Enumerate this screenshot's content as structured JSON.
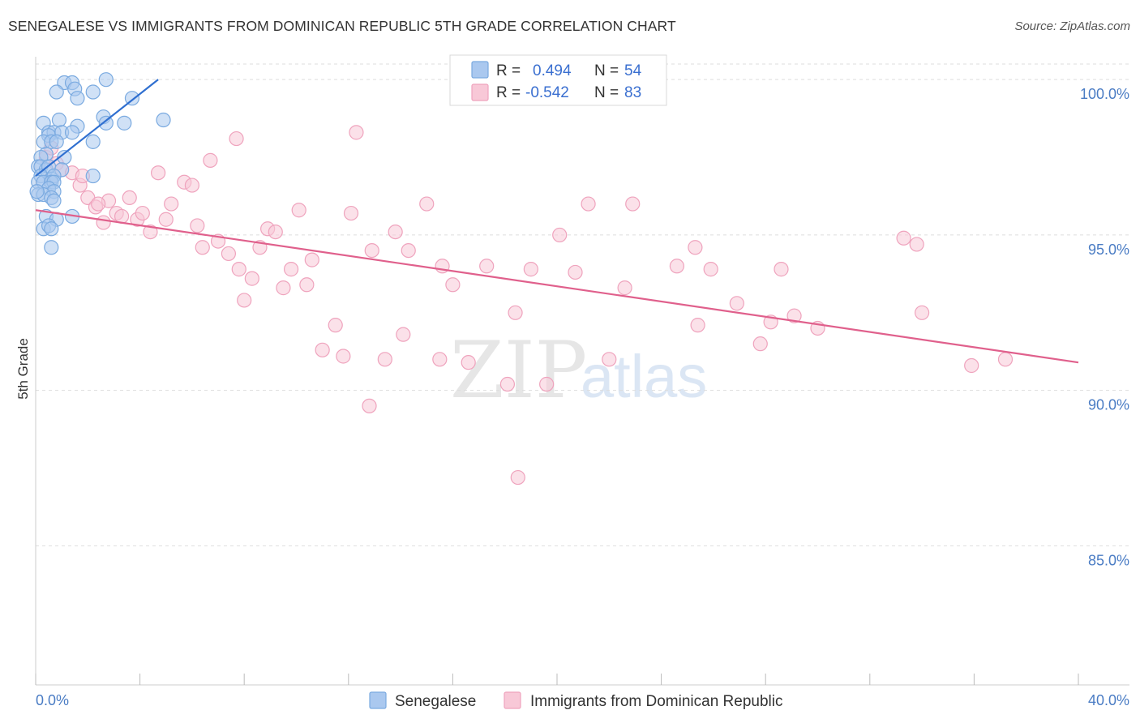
{
  "header": {
    "title": "SENEGALESE VS IMMIGRANTS FROM DOMINICAN REPUBLIC 5TH GRADE CORRELATION CHART",
    "source": "Source: ZipAtlas.com"
  },
  "watermark": {
    "zip": "ZIP",
    "atlas": "atlas"
  },
  "chart_data": {
    "type": "scatter",
    "title": "SENEGALESE VS IMMIGRANTS FROM DOMINICAN REPUBLIC 5TH GRADE CORRELATION CHART",
    "xlabel": "",
    "ylabel": "5th Grade",
    "xlim": [
      0,
      40
    ],
    "ylim": [
      80.5,
      100.5
    ],
    "x_tick_labels": [
      "0.0%",
      "40.0%"
    ],
    "y_ticks": [
      85,
      90,
      95,
      100
    ],
    "y_tick_labels": [
      "85.0%",
      "90.0%",
      "95.0%",
      "100.0%"
    ],
    "grid": true,
    "legend": {
      "position": "top-center",
      "entries": [
        {
          "series": "Senegalese",
          "r_label": "R =",
          "r_value": "0.494",
          "n_label": "N =",
          "n_value": "54"
        },
        {
          "series": "Immigrants from Dominican Republic",
          "r_label": "R =",
          "r_value": "-0.542",
          "n_label": "N =",
          "n_value": "83"
        }
      ]
    },
    "series": [
      {
        "name": "Senegalese",
        "color": "#7aaae0",
        "fill": "#aac8ef",
        "line_color": "#2f6fd0",
        "trend": {
          "x": [
            0.0,
            4.7
          ],
          "y": [
            96.9,
            100.0
          ]
        },
        "points": [
          [
            1.1,
            99.9
          ],
          [
            1.4,
            99.9
          ],
          [
            2.7,
            100.0
          ],
          [
            0.8,
            99.6
          ],
          [
            1.5,
            99.7
          ],
          [
            2.2,
            99.6
          ],
          [
            1.6,
            99.4
          ],
          [
            3.7,
            99.4
          ],
          [
            0.3,
            98.6
          ],
          [
            0.9,
            98.7
          ],
          [
            2.6,
            98.8
          ],
          [
            2.7,
            98.6
          ],
          [
            3.4,
            98.6
          ],
          [
            4.9,
            98.7
          ],
          [
            1.6,
            98.5
          ],
          [
            0.5,
            98.3
          ],
          [
            0.7,
            98.3
          ],
          [
            0.5,
            98.2
          ],
          [
            1.0,
            98.3
          ],
          [
            1.4,
            98.3
          ],
          [
            0.3,
            98.0
          ],
          [
            0.6,
            98.0
          ],
          [
            0.8,
            98.0
          ],
          [
            2.2,
            98.0
          ],
          [
            0.4,
            97.6
          ],
          [
            0.2,
            97.5
          ],
          [
            1.1,
            97.5
          ],
          [
            0.1,
            97.2
          ],
          [
            0.2,
            97.2
          ],
          [
            0.4,
            97.1
          ],
          [
            0.5,
            97.2
          ],
          [
            1.0,
            97.1
          ],
          [
            0.2,
            96.9
          ],
          [
            0.6,
            96.8
          ],
          [
            0.7,
            96.9
          ],
          [
            2.2,
            96.9
          ],
          [
            0.1,
            96.7
          ],
          [
            0.3,
            96.7
          ],
          [
            0.6,
            96.7
          ],
          [
            0.7,
            96.7
          ],
          [
            0.5,
            96.5
          ],
          [
            0.7,
            96.4
          ],
          [
            0.1,
            96.3
          ],
          [
            0.3,
            96.3
          ],
          [
            0.6,
            96.2
          ],
          [
            0.7,
            96.1
          ],
          [
            0.4,
            95.6
          ],
          [
            1.4,
            95.6
          ],
          [
            0.8,
            95.5
          ],
          [
            0.3,
            95.2
          ],
          [
            0.5,
            95.3
          ],
          [
            0.6,
            95.2
          ],
          [
            0.6,
            94.6
          ],
          [
            0.05,
            96.4
          ]
        ]
      },
      {
        "name": "Immigrants from Dominican Republic",
        "color": "#efa3bd",
        "fill": "#f8c8d7",
        "line_color": "#e0608c",
        "trend": {
          "x": [
            0.0,
            40.0
          ],
          "y": [
            95.8,
            90.9
          ]
        },
        "points": [
          [
            0.4,
            97.5
          ],
          [
            0.8,
            97.3
          ],
          [
            1.0,
            97.1
          ],
          [
            1.4,
            97.0
          ],
          [
            1.7,
            96.6
          ],
          [
            2.0,
            96.2
          ],
          [
            2.3,
            95.9
          ],
          [
            2.6,
            95.4
          ],
          [
            2.8,
            96.1
          ],
          [
            3.1,
            95.7
          ],
          [
            3.3,
            95.6
          ],
          [
            3.6,
            96.2
          ],
          [
            3.9,
            95.5
          ],
          [
            4.1,
            95.7
          ],
          [
            4.4,
            95.1
          ],
          [
            4.7,
            97.0
          ],
          [
            5.0,
            95.5
          ],
          [
            5.2,
            96.0
          ],
          [
            5.7,
            96.7
          ],
          [
            6.0,
            96.6
          ],
          [
            6.2,
            95.3
          ],
          [
            6.4,
            94.6
          ],
          [
            6.7,
            97.4
          ],
          [
            7.0,
            94.8
          ],
          [
            7.4,
            94.4
          ],
          [
            7.7,
            98.1
          ],
          [
            7.8,
            93.9
          ],
          [
            8.0,
            92.9
          ],
          [
            8.3,
            93.6
          ],
          [
            8.6,
            94.6
          ],
          [
            8.9,
            95.2
          ],
          [
            9.2,
            95.1
          ],
          [
            9.5,
            93.3
          ],
          [
            9.8,
            93.9
          ],
          [
            10.1,
            95.8
          ],
          [
            10.4,
            93.4
          ],
          [
            10.6,
            94.2
          ],
          [
            11.0,
            91.3
          ],
          [
            11.5,
            92.1
          ],
          [
            11.8,
            91.1
          ],
          [
            12.1,
            95.7
          ],
          [
            12.3,
            98.3
          ],
          [
            12.8,
            89.5
          ],
          [
            12.9,
            94.5
          ],
          [
            13.4,
            91.0
          ],
          [
            13.8,
            95.1
          ],
          [
            14.1,
            91.8
          ],
          [
            14.3,
            94.5
          ],
          [
            15.0,
            96.0
          ],
          [
            15.5,
            91.0
          ],
          [
            15.6,
            94.0
          ],
          [
            16.0,
            93.4
          ],
          [
            16.6,
            90.9
          ],
          [
            17.3,
            94.0
          ],
          [
            18.1,
            90.2
          ],
          [
            18.4,
            92.5
          ],
          [
            18.5,
            87.2
          ],
          [
            19.0,
            93.9
          ],
          [
            19.6,
            90.2
          ],
          [
            20.1,
            95.0
          ],
          [
            20.7,
            93.8
          ],
          [
            21.2,
            96.0
          ],
          [
            22.0,
            91.0
          ],
          [
            22.6,
            93.3
          ],
          [
            22.9,
            96.0
          ],
          [
            24.6,
            94.0
          ],
          [
            25.3,
            94.6
          ],
          [
            25.4,
            92.1
          ],
          [
            25.9,
            93.9
          ],
          [
            26.9,
            92.8
          ],
          [
            27.8,
            91.5
          ],
          [
            28.2,
            92.2
          ],
          [
            28.6,
            93.9
          ],
          [
            29.1,
            92.4
          ],
          [
            30.0,
            92.0
          ],
          [
            33.3,
            94.9
          ],
          [
            33.8,
            94.7
          ],
          [
            34.0,
            92.5
          ],
          [
            35.9,
            90.8
          ],
          [
            37.2,
            91.0
          ],
          [
            0.6,
            97.8
          ],
          [
            1.8,
            96.9
          ],
          [
            2.4,
            96.0
          ]
        ]
      }
    ]
  }
}
